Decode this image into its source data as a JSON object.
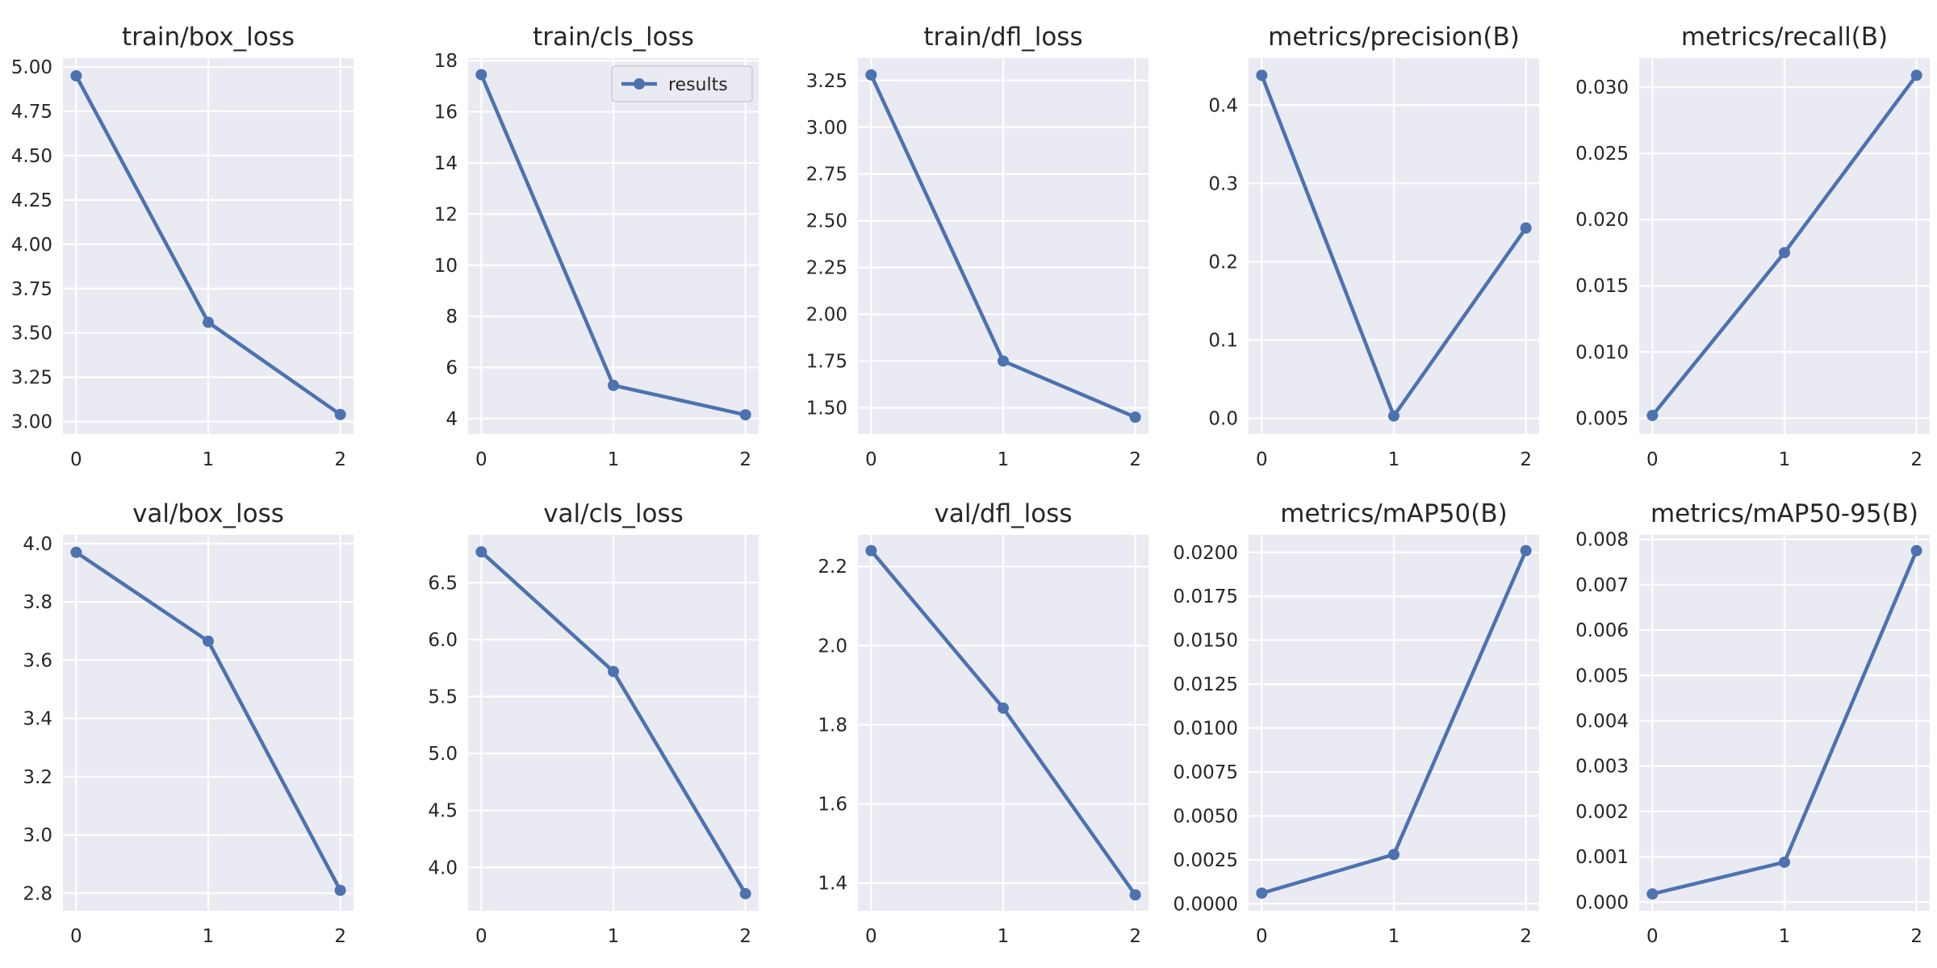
{
  "colors": {
    "line": "#4c72b0",
    "plot_bg": "#eaeaf2",
    "grid": "#ffffff",
    "text": "#262626"
  },
  "chart_data": [
    {
      "type": "line",
      "title": "train/box_loss",
      "x": [
        0,
        1,
        2
      ],
      "xticks": [
        "0",
        "1",
        "2"
      ],
      "ylim": [
        2.93,
        5.05
      ],
      "yticks": [
        "3.00",
        "3.25",
        "3.50",
        "3.75",
        "4.00",
        "4.25",
        "4.50",
        "4.75",
        "5.00"
      ],
      "series": [
        {
          "name": "",
          "values": [
            4.95,
            3.56,
            3.04
          ]
        }
      ]
    },
    {
      "type": "line",
      "title": "train/cls_loss",
      "x": [
        0,
        1,
        2
      ],
      "xticks": [
        "0",
        "1",
        "2"
      ],
      "ylim": [
        3.4,
        18.1
      ],
      "yticks": [
        "4",
        "6",
        "8",
        "10",
        "12",
        "14",
        "16",
        "18"
      ],
      "legend": {
        "entries": [
          "results"
        ],
        "placement": "top-right"
      },
      "series": [
        {
          "name": "results",
          "values": [
            17.45,
            5.3,
            4.15
          ]
        }
      ]
    },
    {
      "type": "line",
      "title": "train/dfl_loss",
      "x": [
        0,
        1,
        2
      ],
      "xticks": [
        "0",
        "1",
        "2"
      ],
      "ylim": [
        1.36,
        3.37
      ],
      "yticks": [
        "1.50",
        "1.75",
        "2.00",
        "2.25",
        "2.50",
        "2.75",
        "3.00",
        "3.25"
      ],
      "series": [
        {
          "name": "",
          "values": [
            3.28,
            1.75,
            1.45
          ]
        }
      ]
    },
    {
      "type": "line",
      "title": "metrics/precision(B)",
      "x": [
        0,
        1,
        2
      ],
      "xticks": [
        "0",
        "1",
        "2"
      ],
      "ylim": [
        -0.02,
        0.46
      ],
      "yticks": [
        "0.0",
        "0.1",
        "0.2",
        "0.3",
        "0.4"
      ],
      "series": [
        {
          "name": "",
          "values": [
            0.438,
            0.003,
            0.243
          ]
        }
      ]
    },
    {
      "type": "line",
      "title": "metrics/recall(B)",
      "x": [
        0,
        1,
        2
      ],
      "xticks": [
        "0",
        "1",
        "2"
      ],
      "ylim": [
        0.0038,
        0.0322
      ],
      "yticks": [
        "0.005",
        "0.010",
        "0.015",
        "0.020",
        "0.025",
        "0.030"
      ],
      "series": [
        {
          "name": "",
          "values": [
            0.0052,
            0.0175,
            0.0309
          ]
        }
      ]
    },
    {
      "type": "line",
      "title": "val/box_loss",
      "x": [
        0,
        1,
        2
      ],
      "xticks": [
        "0",
        "1",
        "2"
      ],
      "ylim": [
        2.74,
        4.03
      ],
      "yticks": [
        "2.8",
        "3.0",
        "3.2",
        "3.4",
        "3.6",
        "3.8",
        "4.0"
      ],
      "series": [
        {
          "name": "",
          "values": [
            3.97,
            3.665,
            2.81
          ]
        }
      ]
    },
    {
      "type": "line",
      "title": "val/cls_loss",
      "x": [
        0,
        1,
        2
      ],
      "xticks": [
        "0",
        "1",
        "2"
      ],
      "ylim": [
        3.62,
        6.92
      ],
      "yticks": [
        "4.0",
        "4.5",
        "5.0",
        "5.5",
        "6.0",
        "6.5"
      ],
      "series": [
        {
          "name": "",
          "values": [
            6.77,
            5.72,
            3.77
          ]
        }
      ]
    },
    {
      "type": "line",
      "title": "val/dfl_loss",
      "x": [
        0,
        1,
        2
      ],
      "xticks": [
        "0",
        "1",
        "2"
      ],
      "ylim": [
        1.33,
        2.28
      ],
      "yticks": [
        "1.4",
        "1.6",
        "1.8",
        "2.0",
        "2.2"
      ],
      "series": [
        {
          "name": "",
          "values": [
            2.24,
            1.842,
            1.37
          ]
        }
      ]
    },
    {
      "type": "line",
      "title": "metrics/mAP50(B)",
      "x": [
        0,
        1,
        2
      ],
      "xticks": [
        "0",
        "1",
        "2"
      ],
      "ylim": [
        -0.0004,
        0.021
      ],
      "yticks": [
        "0.0000",
        "0.0025",
        "0.0050",
        "0.0075",
        "0.0100",
        "0.0125",
        "0.0150",
        "0.0175",
        "0.0200"
      ],
      "series": [
        {
          "name": "",
          "values": [
            0.0006,
            0.0028,
            0.0201
          ]
        }
      ]
    },
    {
      "type": "line",
      "title": "metrics/mAP50-95(B)",
      "x": [
        0,
        1,
        2
      ],
      "xticks": [
        "0",
        "1",
        "2"
      ],
      "ylim": [
        -0.00019,
        0.0081
      ],
      "yticks": [
        "0.000",
        "0.001",
        "0.002",
        "0.003",
        "0.004",
        "0.005",
        "0.006",
        "0.007",
        "0.008"
      ],
      "series": [
        {
          "name": "",
          "values": [
            0.00018,
            0.00088,
            0.00775
          ]
        }
      ]
    }
  ]
}
